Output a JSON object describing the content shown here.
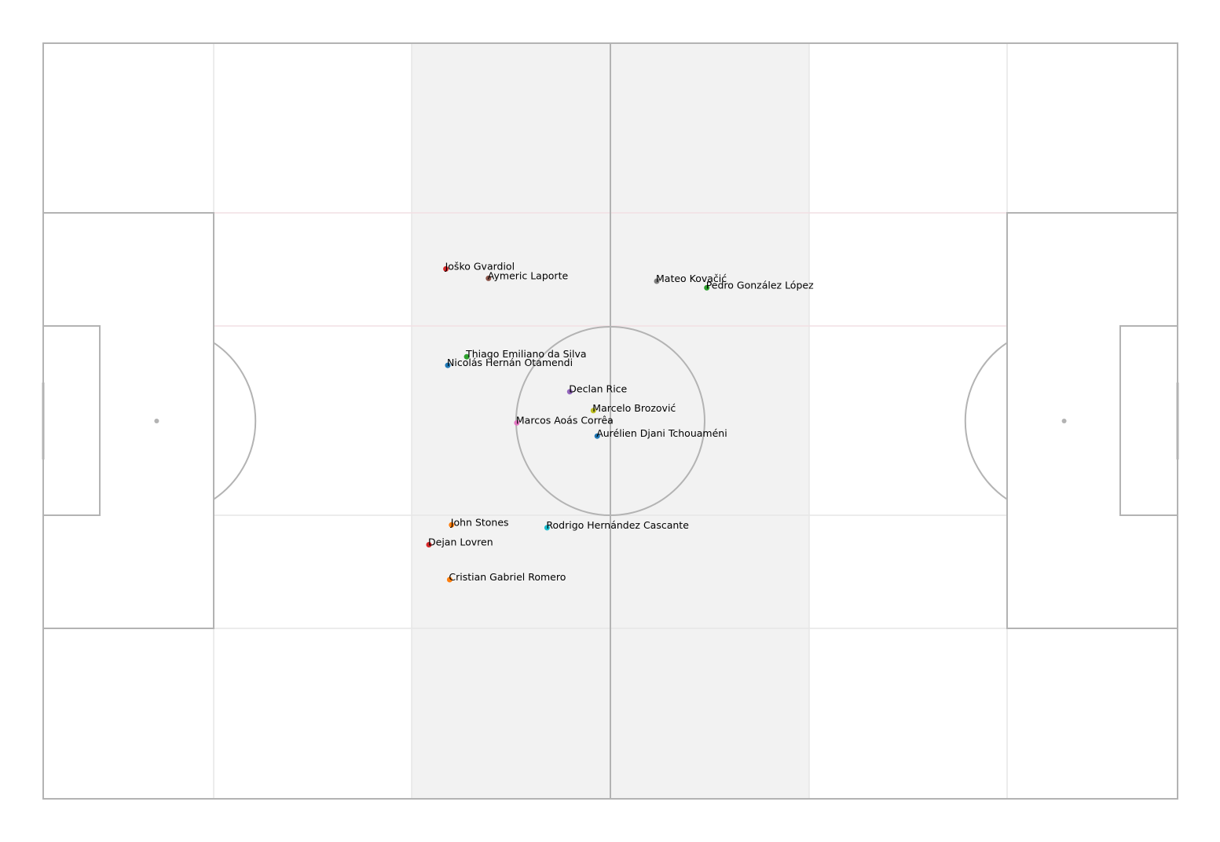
{
  "chart_data": {
    "type": "scatter",
    "title": "",
    "xlabel": "",
    "ylabel": "",
    "xlim": [
      0,
      120
    ],
    "ylim": [
      0,
      80
    ],
    "y_inverted": true,
    "grid": false,
    "legend": "none",
    "colors": {
      "pitch_line": "#b3b3b3",
      "zone_line": "#e6e6e6",
      "zone_line_pink": "#f2dfe3",
      "highlight_fill": "#f2f2f2"
    },
    "highlight_zone_x": [
      39,
      81
    ],
    "points": [
      {
        "name": "Joško Gvardiol",
        "x": 42.6,
        "y": 23.9,
        "color": "#d62728"
      },
      {
        "name": "Aymeric Laporte",
        "x": 47.1,
        "y": 24.9,
        "color": "#8c564b"
      },
      {
        "name": "Mateo Kovačić",
        "x": 64.9,
        "y": 25.2,
        "color": "#7f7f7f"
      },
      {
        "name": "Pedro González López",
        "x": 70.2,
        "y": 25.9,
        "color": "#2ca02c"
      },
      {
        "name": "Thiago Emiliano da Silva",
        "x": 44.8,
        "y": 33.2,
        "color": "#2ca02c"
      },
      {
        "name": "Nicolás Hernán Otamendi",
        "x": 42.8,
        "y": 34.1,
        "color": "#1f77b4"
      },
      {
        "name": "Declan Rice",
        "x": 55.7,
        "y": 36.9,
        "color": "#9467bd"
      },
      {
        "name": "Marcelo Brozović",
        "x": 58.2,
        "y": 38.9,
        "color": "#bcbd22"
      },
      {
        "name": "Marcos Aoás Corrêa",
        "x": 50.1,
        "y": 40.2,
        "color": "#e377c2"
      },
      {
        "name": "Aurélien Djani Tchouaméni",
        "x": 58.6,
        "y": 41.6,
        "color": "#1f77b4"
      },
      {
        "name": "John Stones",
        "x": 43.2,
        "y": 51.0,
        "color": "#ff7f0e"
      },
      {
        "name": "Rodrigo Hernández Cascante",
        "x": 53.3,
        "y": 51.3,
        "color": "#17becf"
      },
      {
        "name": "Dejan Lovren",
        "x": 40.8,
        "y": 53.1,
        "color": "#d62728"
      },
      {
        "name": "Cristian Gabriel Romero",
        "x": 43.0,
        "y": 56.8,
        "color": "#ff7f0e"
      }
    ]
  }
}
